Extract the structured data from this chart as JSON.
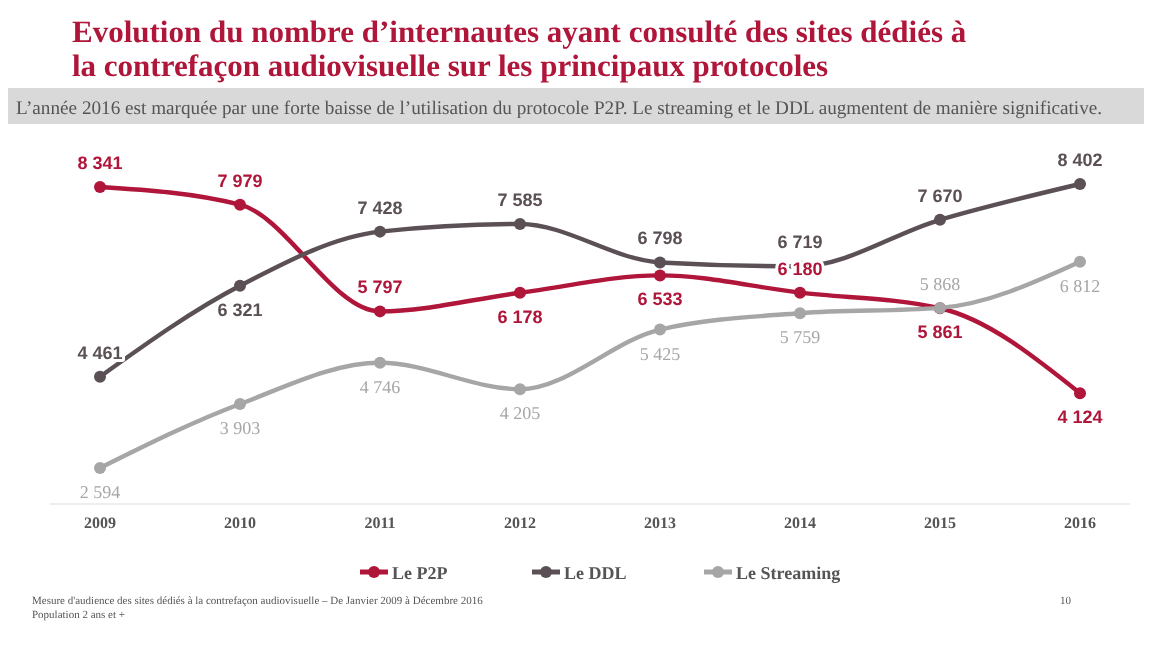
{
  "chart_data": {
    "type": "line",
    "title": "Evolution du nombre d’internautes ayant consulté des sites dédiés à la contrefaçon audiovisuelle sur les principaux protocoles",
    "subtitle": "L’année 2016 est marquée par une forte baisse de l’utilisation du protocole P2P. Le streaming et le DDL augmentent de manière significative.",
    "categories": [
      "2009",
      "2010",
      "2011",
      "2012",
      "2013",
      "2014",
      "2015",
      "2016"
    ],
    "series": [
      {
        "name": "Le P2P",
        "color": "#b0153a",
        "values": [
          8341,
          7979,
          5797,
          6178,
          6533,
          6180,
          5861,
          4124
        ]
      },
      {
        "name": "Le DDL",
        "color": "#5a5055",
        "values": [
          4461,
          6321,
          7428,
          7585,
          6798,
          6719,
          7670,
          8402
        ]
      },
      {
        "name": "Le Streaming",
        "color": "#a6a6a6",
        "values": [
          2594,
          3903,
          4746,
          4205,
          5425,
          5759,
          5868,
          6812
        ]
      }
    ],
    "data_labels": true,
    "marker": "circle",
    "legend": "bottom",
    "grid": false,
    "annotations": [
      "Mesure d'audience des sites dédiés à la contrefaçon audiovisuelle – De Janvier 2009 à Décembre 2016",
      "Population 2 ans et +",
      "10"
    ]
  }
}
